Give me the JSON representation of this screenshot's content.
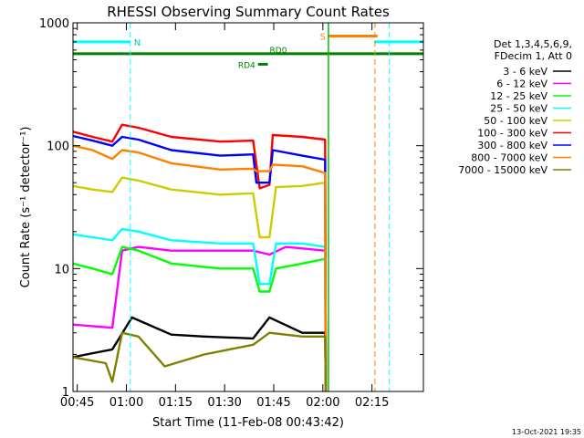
{
  "chart_data": {
    "type": "line",
    "title": "RHESSI Observing Summary Count Rates",
    "xlabel": "Start Time (11-Feb-08 00:43:42)",
    "ylabel": "Count Rate (s⁻¹ detector⁻¹)",
    "yscale": "log",
    "xlim_minutes": [
      0,
      107
    ],
    "ylim": [
      1,
      1000
    ],
    "x_ticks": [
      {
        "label": "00:45",
        "min": 1.3
      },
      {
        "label": "01:00",
        "min": 16.3
      },
      {
        "label": "01:15",
        "min": 31.3
      },
      {
        "label": "01:30",
        "min": 46.3
      },
      {
        "label": "01:45",
        "min": 61.3
      },
      {
        "label": "02:00",
        "min": 76.3
      },
      {
        "label": "02:15",
        "min": 91.3
      }
    ],
    "y_ticks": [
      {
        "label": "1",
        "v": 1
      },
      {
        "label": "10",
        "v": 10
      },
      {
        "label": "100",
        "v": 100
      },
      {
        "label": "1000",
        "v": 1000
      }
    ],
    "legend_header": [
      "Det 1,3,4,5,6,9,",
      "FDecim 1, Att 0"
    ],
    "series": [
      {
        "name": "3 - 6 keV",
        "color": "#000000",
        "points": [
          [
            0,
            1.9
          ],
          [
            4,
            2.0
          ],
          [
            12,
            2.2
          ],
          [
            18,
            4.0
          ],
          [
            30,
            2.9
          ],
          [
            40,
            2.8
          ],
          [
            55,
            2.7
          ],
          [
            60,
            4.0
          ],
          [
            70,
            3.0
          ],
          [
            77,
            3.0
          ],
          [
            77.2,
            1.0
          ]
        ]
      },
      {
        "name": "6 - 12 keV",
        "color": "#ff00ff",
        "points": [
          [
            0,
            3.5
          ],
          [
            12,
            3.3
          ],
          [
            15,
            14.0
          ],
          [
            20,
            15.0
          ],
          [
            30,
            14.0
          ],
          [
            45,
            14.0
          ],
          [
            55,
            14.0
          ],
          [
            60,
            13.0
          ],
          [
            65,
            15.0
          ],
          [
            77,
            14.0
          ],
          [
            77.2,
            1.0
          ]
        ]
      },
      {
        "name": "12 - 25 keV",
        "color": "#00ff00",
        "points": [
          [
            0,
            11
          ],
          [
            6,
            10
          ],
          [
            12,
            9
          ],
          [
            15,
            15
          ],
          [
            20,
            14
          ],
          [
            30,
            11
          ],
          [
            45,
            10
          ],
          [
            55,
            10
          ],
          [
            57,
            6.5
          ],
          [
            60,
            6.5
          ],
          [
            62,
            10
          ],
          [
            70,
            11
          ],
          [
            77,
            12
          ],
          [
            77.2,
            1.0
          ]
        ]
      },
      {
        "name": "25 - 50 keV",
        "color": "#00ffff",
        "points": [
          [
            0,
            19
          ],
          [
            6,
            18
          ],
          [
            12,
            17
          ],
          [
            15,
            21
          ],
          [
            20,
            20
          ],
          [
            30,
            17
          ],
          [
            45,
            16
          ],
          [
            55,
            16
          ],
          [
            57,
            7.5
          ],
          [
            60,
            7.5
          ],
          [
            62,
            16
          ],
          [
            70,
            16
          ],
          [
            77,
            15
          ],
          [
            77.2,
            1.0
          ]
        ]
      },
      {
        "name": "50 - 100 keV",
        "color": "#cccc00",
        "points": [
          [
            0,
            47
          ],
          [
            6,
            44
          ],
          [
            12,
            42
          ],
          [
            15,
            55
          ],
          [
            20,
            52
          ],
          [
            30,
            44
          ],
          [
            45,
            40
          ],
          [
            55,
            41
          ],
          [
            57,
            18
          ],
          [
            60,
            18
          ],
          [
            62,
            46
          ],
          [
            70,
            47
          ],
          [
            77,
            50
          ],
          [
            77.2,
            1.0
          ]
        ]
      },
      {
        "name": "100 - 300 keV",
        "color": "#ff0000",
        "points": [
          [
            0,
            130
          ],
          [
            6,
            118
          ],
          [
            12,
            108
          ],
          [
            15,
            148
          ],
          [
            20,
            140
          ],
          [
            30,
            118
          ],
          [
            45,
            108
          ],
          [
            55,
            110
          ],
          [
            57,
            45
          ],
          [
            60,
            48
          ],
          [
            61,
            122
          ],
          [
            70,
            118
          ],
          [
            77,
            112
          ],
          [
            77.2,
            1.0
          ]
        ]
      },
      {
        "name": "300 - 800 keV",
        "color": "#0000ff",
        "points": [
          [
            0,
            120
          ],
          [
            6,
            110
          ],
          [
            12,
            100
          ],
          [
            15,
            118
          ],
          [
            20,
            112
          ],
          [
            30,
            92
          ],
          [
            45,
            83
          ],
          [
            55,
            85
          ],
          [
            56,
            50
          ],
          [
            60,
            50
          ],
          [
            61,
            92
          ],
          [
            70,
            83
          ],
          [
            77,
            77
          ],
          [
            77.2,
            1.0
          ]
        ]
      },
      {
        "name": "800 - 7000 keV",
        "color": "#ff8000",
        "points": [
          [
            0,
            100
          ],
          [
            6,
            92
          ],
          [
            12,
            78
          ],
          [
            15,
            92
          ],
          [
            20,
            88
          ],
          [
            30,
            72
          ],
          [
            45,
            64
          ],
          [
            55,
            65
          ],
          [
            56,
            62
          ],
          [
            60,
            62
          ],
          [
            61,
            70
          ],
          [
            70,
            68
          ],
          [
            77,
            60
          ],
          [
            77.2,
            1.0
          ]
        ]
      },
      {
        "name": "7000 - 15000 keV",
        "color": "#808000",
        "points": [
          [
            0,
            1.9
          ],
          [
            10,
            1.7
          ],
          [
            12,
            1.2
          ],
          [
            15,
            3.0
          ],
          [
            20,
            2.8
          ],
          [
            28,
            1.6
          ],
          [
            40,
            2.0
          ],
          [
            55,
            2.4
          ],
          [
            60,
            3.0
          ],
          [
            70,
            2.8
          ],
          [
            77,
            2.8
          ],
          [
            77.2,
            1.0
          ]
        ]
      }
    ],
    "events": {
      "night_bars": [
        {
          "label": "N",
          "start": 0,
          "end": 17.5,
          "level": 700
        },
        {
          "start": 92,
          "end": 107,
          "level": 700
        }
      ],
      "saa_bar": {
        "label": "S",
        "start": 78,
        "end": 93,
        "level": 780
      },
      "rd_bars": [
        {
          "label": "RD0",
          "start": 0,
          "end": 107,
          "level": 560
        },
        {
          "label": "RD4",
          "start": 56.5,
          "end": 59.5,
          "level": 460
        }
      ],
      "dashed_lines": [
        {
          "min": 17.5,
          "color": "#00ffff"
        },
        {
          "min": 92.2,
          "color": "#ff8000"
        },
        {
          "min": 96.6,
          "color": "#00ffff"
        }
      ],
      "solid_lines": [
        {
          "min": 78,
          "color": "#00c000"
        }
      ]
    },
    "grid": false,
    "legend_position": "right"
  },
  "footer_date": "13-Oct-2021 19:35"
}
